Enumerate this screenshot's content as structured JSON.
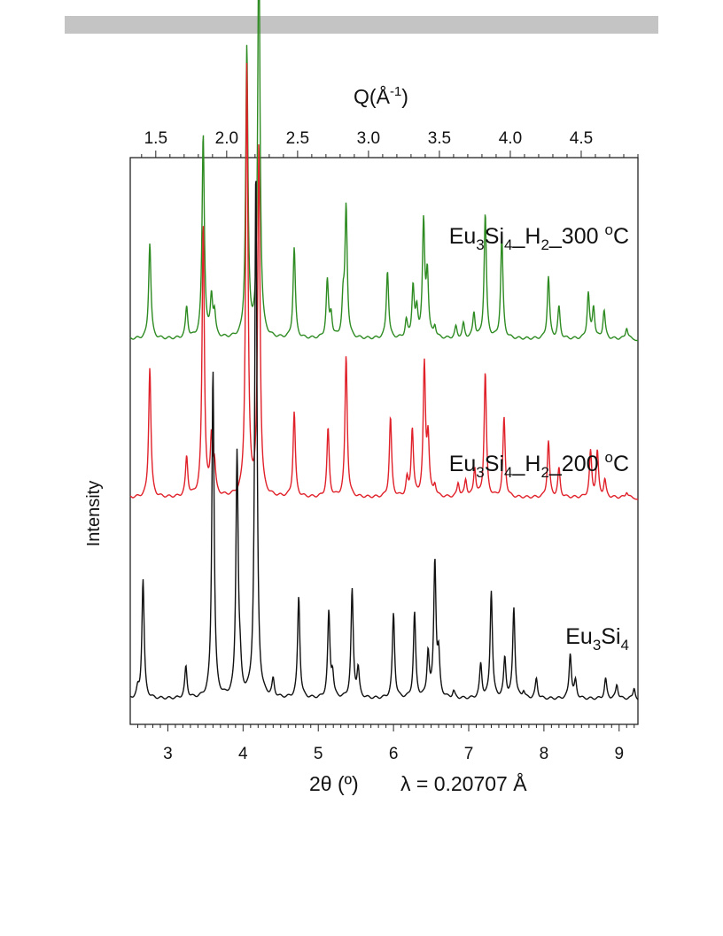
{
  "chart_data": {
    "type": "line",
    "ylabel": "Intensity",
    "xaxis_bottom": {
      "label": "2θ  (º)",
      "wavelength_label": "λ = 0.20707 Å",
      "range": [
        2.5,
        9.25
      ],
      "ticks": [
        3,
        4,
        5,
        6,
        7,
        8,
        9
      ]
    },
    "xaxis_top": {
      "label_main": "Q(Å",
      "label_sup": "-1",
      "label_close": ")",
      "range": [
        1.32,
        4.9
      ],
      "ticks": [
        "1.5",
        "2.0",
        "2.5",
        "3.0",
        "3.5",
        "4.0",
        "4.5"
      ],
      "tick_values": [
        1.5,
        2.0,
        2.5,
        3.0,
        3.5,
        4.0,
        4.5
      ]
    },
    "yticks": "none",
    "series": [
      {
        "label_parts": [
          "Eu",
          "3",
          "Si",
          "4",
          "_H",
          "2",
          "_300 ",
          "o",
          "C"
        ],
        "color": "#2e8b22",
        "baseline": 0.68,
        "peaks": [
          [
            2.76,
            0.17
          ],
          [
            3.25,
            0.055
          ],
          [
            3.47,
            0.36
          ],
          [
            3.58,
            0.07
          ],
          [
            3.62,
            0.04
          ],
          [
            4.05,
            0.51
          ],
          [
            4.21,
            0.72
          ],
          [
            4.68,
            0.16
          ],
          [
            5.12,
            0.1
          ],
          [
            5.17,
            0.04
          ],
          [
            5.33,
            0.06
          ],
          [
            5.37,
            0.23
          ],
          [
            5.92,
            0.12
          ],
          [
            6.17,
            0.03
          ],
          [
            6.26,
            0.09
          ],
          [
            6.31,
            0.045
          ],
          [
            6.4,
            0.2
          ],
          [
            6.45,
            0.11
          ],
          [
            6.55,
            0.02
          ],
          [
            6.83,
            0.02
          ],
          [
            6.93,
            0.025
          ],
          [
            7.07,
            0.045
          ],
          [
            7.22,
            0.22
          ],
          [
            7.44,
            0.18
          ],
          [
            8.06,
            0.11
          ],
          [
            8.2,
            0.055
          ],
          [
            8.59,
            0.08
          ],
          [
            8.66,
            0.055
          ],
          [
            8.8,
            0.05
          ],
          [
            9.1,
            0.02
          ]
        ]
      },
      {
        "label_parts": [
          "Eu",
          "3",
          "Si",
          "4",
          "_H",
          "2",
          "_200 ",
          "o",
          "C"
        ],
        "color": "#e0212a",
        "baseline": 0.4,
        "peaks": [
          [
            2.76,
            0.23
          ],
          [
            3.25,
            0.07
          ],
          [
            3.47,
            0.48
          ],
          [
            3.58,
            0.1
          ],
          [
            3.62,
            0.05
          ],
          [
            4.05,
            0.76
          ],
          [
            4.21,
            0.62
          ],
          [
            4.68,
            0.15
          ],
          [
            5.13,
            0.12
          ],
          [
            5.37,
            0.25
          ],
          [
            5.96,
            0.14
          ],
          [
            6.18,
            0.03
          ],
          [
            6.25,
            0.12
          ],
          [
            6.41,
            0.23
          ],
          [
            6.46,
            0.1
          ],
          [
            6.55,
            0.02
          ],
          [
            6.86,
            0.025
          ],
          [
            6.96,
            0.03
          ],
          [
            7.08,
            0.05
          ],
          [
            7.22,
            0.22
          ],
          [
            7.47,
            0.14
          ],
          [
            8.06,
            0.1
          ],
          [
            8.2,
            0.05
          ],
          [
            8.62,
            0.08
          ],
          [
            8.71,
            0.08
          ],
          [
            8.81,
            0.03
          ],
          [
            9.1,
            0.01
          ]
        ]
      },
      {
        "label_parts": [
          "Eu",
          "3",
          "Si",
          "4"
        ],
        "color": "#111111",
        "baseline": 0.045,
        "peaks": [
          [
            2.6,
            0.015
          ],
          [
            2.67,
            0.21
          ],
          [
            3.24,
            0.055
          ],
          [
            3.6,
            0.58
          ],
          [
            3.92,
            0.43
          ],
          [
            3.96,
            0.04
          ],
          [
            4.17,
            0.93
          ],
          [
            4.4,
            0.03
          ],
          [
            4.74,
            0.18
          ],
          [
            5.14,
            0.15
          ],
          [
            5.19,
            0.04
          ],
          [
            5.45,
            0.19
          ],
          [
            5.53,
            0.05
          ],
          [
            6.0,
            0.15
          ],
          [
            6.28,
            0.15
          ],
          [
            6.46,
            0.08
          ],
          [
            6.55,
            0.24
          ],
          [
            6.6,
            0.07
          ],
          [
            6.8,
            0.012
          ],
          [
            7.16,
            0.06
          ],
          [
            7.3,
            0.19
          ],
          [
            7.48,
            0.07
          ],
          [
            7.6,
            0.16
          ],
          [
            7.73,
            0.012
          ],
          [
            7.9,
            0.035
          ],
          [
            8.35,
            0.08
          ],
          [
            8.42,
            0.03
          ],
          [
            8.82,
            0.035
          ],
          [
            8.97,
            0.025
          ],
          [
            9.2,
            0.02
          ]
        ]
      }
    ]
  }
}
